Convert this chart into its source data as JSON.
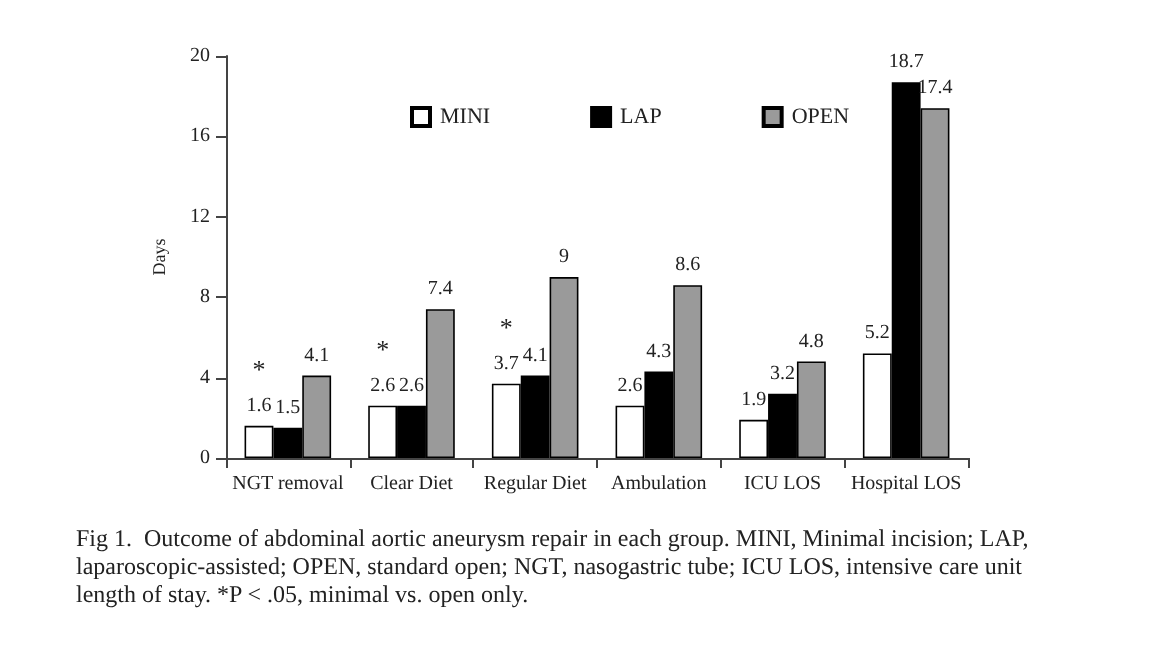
{
  "chart_data": {
    "type": "bar",
    "ylabel": "Days",
    "categories": [
      "NGT removal",
      "Clear Diet",
      "Regular Diet",
      "Ambulation",
      "ICU LOS",
      "Hospital LOS"
    ],
    "series": [
      {
        "name": "MINI",
        "color": "#ffffff",
        "values": [
          1.6,
          2.6,
          3.7,
          2.6,
          1.9,
          5.2
        ]
      },
      {
        "name": "LAP",
        "color": "#000000",
        "values": [
          1.5,
          2.6,
          4.1,
          4.3,
          3.2,
          18.7
        ]
      },
      {
        "name": "OPEN",
        "color": "#9a9a9a",
        "values": [
          4.1,
          7.4,
          9,
          8.6,
          4.8,
          17.4
        ]
      }
    ],
    "ylim": [
      0,
      20
    ],
    "yticks": [
      0,
      4,
      8,
      12,
      16,
      20
    ],
    "data_labels": true,
    "legend": "top",
    "grid": false,
    "annotations": [
      {
        "text": "*",
        "x": "NGT removal",
        "y": 1.6
      },
      {
        "text": "*",
        "x": "Clear Diet",
        "y": 2.6
      },
      {
        "text": "*",
        "x": "Regular Diet",
        "y": 3.7
      },
      "Fig 1.  Outcome of abdominal aortic aneurysm repair in each group. MINI, Minimal incision; LAP, laparoscopic-assisted; OPEN, standard open; NGT, nasogastric tube; ICU LOS, intensive care unit length of stay. *P < .05, minimal vs. open only."
    ]
  }
}
